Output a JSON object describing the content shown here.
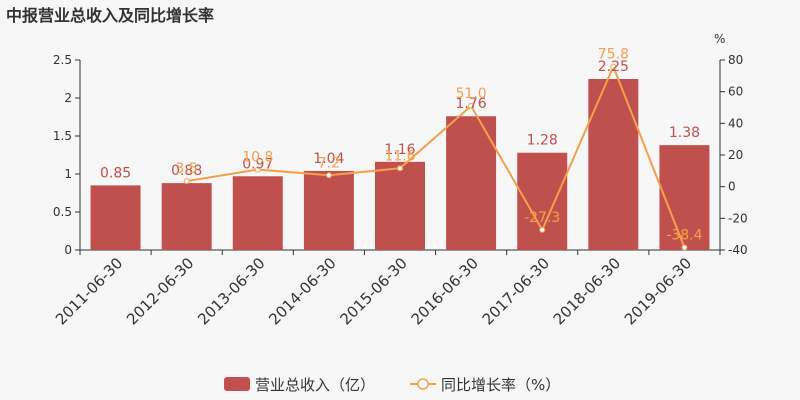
{
  "title": "中报营业总收入及同比增长率",
  "chart_data": {
    "type": "bar",
    "categories": [
      "2011-06-30",
      "2012-06-30",
      "2013-06-30",
      "2014-06-30",
      "2015-06-30",
      "2016-06-30",
      "2017-06-30",
      "2018-06-30",
      "2019-06-30"
    ],
    "series": [
      {
        "name": "营业总收入（亿）",
        "type": "bar",
        "color": "#c0504d",
        "values": [
          0.85,
          0.88,
          0.97,
          1.04,
          1.16,
          1.76,
          1.28,
          2.25,
          1.38
        ],
        "labels": [
          "0.85",
          "0.88",
          "0.97",
          "1.04",
          "1.16",
          "1.76",
          "1.28",
          "2.25",
          "1.38"
        ]
      },
      {
        "name": "同比增长率（%）",
        "type": "line",
        "color": "#f5a04a",
        "values": [
          null,
          3.5,
          10.8,
          7.2,
          11.6,
          51.0,
          -27.3,
          75.8,
          -38.4
        ],
        "labels": [
          "",
          "3.5",
          "10.8",
          "7.2",
          "11.6",
          "51.0",
          "-27.3",
          "75.8",
          "-38.4"
        ]
      }
    ],
    "left_axis": {
      "min": 0,
      "max": 2.5,
      "ticks": [
        "0",
        "0.5",
        "1",
        "1.5",
        "2",
        "2.5"
      ]
    },
    "right_axis": {
      "min": -40,
      "max": 80,
      "unit": "%",
      "ticks": [
        "-40",
        "-20",
        "0",
        "20",
        "40",
        "60",
        "80"
      ]
    },
    "legend_placement": "bottom-center",
    "grid": false
  }
}
